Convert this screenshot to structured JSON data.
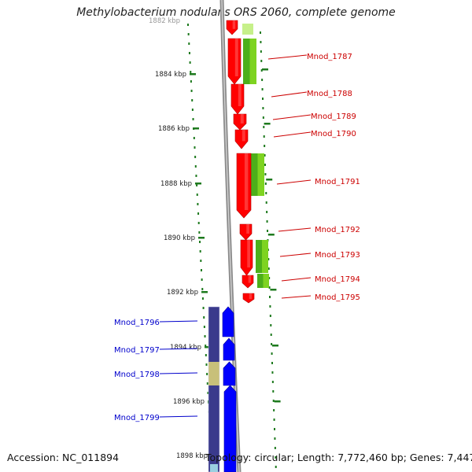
{
  "title": "Methylobacterium nodulans ORS 2060, complete genome",
  "accession_text": "Accession: NC_011894",
  "summary_text": "Topology: circular; Length: 7,772,460 bp; Genes: 7,447",
  "scale": {
    "first_label": "1882 kbp",
    "ticks": [
      "1884 kbp",
      "1886 kbp",
      "1888 kbp",
      "1890 kbp",
      "1892 kbp",
      "1894 kbp",
      "1896 kbp",
      "1898 kbp"
    ]
  },
  "colors": {
    "forward_gene": "#ff0000",
    "forward_label": "#cc0000",
    "forward_feature": "#7ed321",
    "reverse_gene": "#0000ff",
    "reverse_label": "#0000cc",
    "reverse_feature": "#3a3a8c",
    "reverse_feature_alt": "#c8c07a",
    "backbone": "#8a8a8a",
    "tick": "#1e7a1e"
  },
  "forward_genes": [
    "Mnod_1787",
    "Mnod_1788",
    "Mnod_1789",
    "Mnod_1790",
    "Mnod_1791",
    "Mnod_1792",
    "Mnod_1793",
    "Mnod_1794",
    "Mnod_1795"
  ],
  "reverse_genes": [
    "Mnod_1796",
    "Mnod_1797",
    "Mnod_1798",
    "Mnod_1799"
  ]
}
